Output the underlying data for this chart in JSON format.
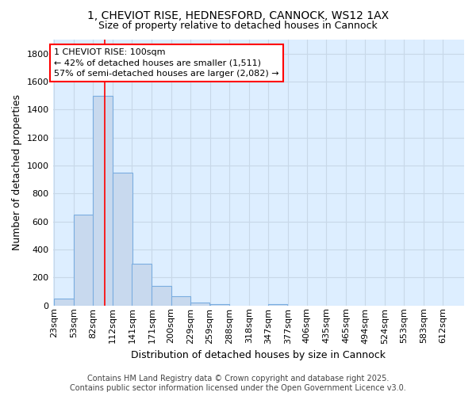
{
  "title": "1, CHEVIOT RISE, HEDNESFORD, CANNOCK, WS12 1AX",
  "subtitle": "Size of property relative to detached houses in Cannock",
  "xlabel": "Distribution of detached houses by size in Cannock",
  "ylabel": "Number of detached properties",
  "bin_labels": [
    "23sqm",
    "53sqm",
    "82sqm",
    "112sqm",
    "141sqm",
    "171sqm",
    "200sqm",
    "229sqm",
    "259sqm",
    "288sqm",
    "318sqm",
    "347sqm",
    "377sqm",
    "406sqm",
    "435sqm",
    "465sqm",
    "494sqm",
    "524sqm",
    "553sqm",
    "583sqm",
    "612sqm"
  ],
  "bin_edges": [
    23,
    53,
    82,
    112,
    141,
    171,
    200,
    229,
    259,
    288,
    318,
    347,
    377,
    406,
    435,
    465,
    494,
    524,
    553,
    583,
    612
  ],
  "bar_heights": [
    50,
    650,
    1500,
    950,
    300,
    140,
    65,
    20,
    10,
    0,
    0,
    10,
    0,
    0,
    0,
    0,
    0,
    0,
    0,
    0,
    0
  ],
  "bar_color": "#c8d9ee",
  "bar_edge_color": "#7aade0",
  "grid_color": "#c8d8e8",
  "background_color": "#ddeeff",
  "fig_background": "#ffffff",
  "vline_x": 100,
  "vline_color": "red",
  "ylim": [
    0,
    1900
  ],
  "yticks": [
    0,
    200,
    400,
    600,
    800,
    1000,
    1200,
    1400,
    1600,
    1800
  ],
  "annotation_text": "1 CHEVIOT RISE: 100sqm\n← 42% of detached houses are smaller (1,511)\n57% of semi-detached houses are larger (2,082) →",
  "footer_line1": "Contains HM Land Registry data © Crown copyright and database right 2025.",
  "footer_line2": "Contains public sector information licensed under the Open Government Licence v3.0.",
  "title_fontsize": 10,
  "subtitle_fontsize": 9,
  "axis_label_fontsize": 9,
  "tick_fontsize": 8,
  "annotation_fontsize": 8,
  "footer_fontsize": 7
}
